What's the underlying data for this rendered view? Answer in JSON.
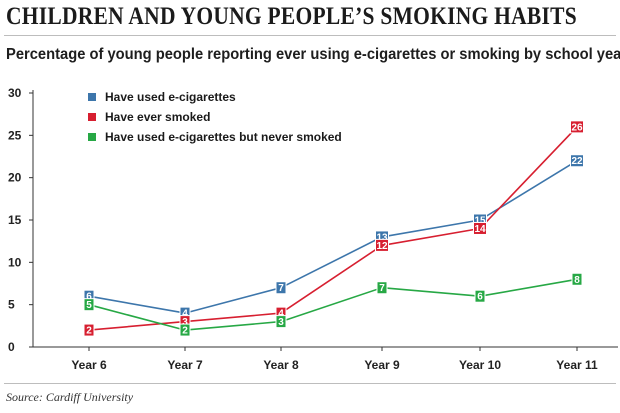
{
  "header": {
    "title": "CHILDREN AND YOUNG PEOPLE’S SMOKING HABITS",
    "subtitle": "Percentage of young people reporting ever using e-cigarettes or smoking by school year"
  },
  "footer": {
    "source": "Source: Cardiff University"
  },
  "chart_data": {
    "type": "line",
    "title": "Percentage of young people reporting ever using e-cigarettes or smoking by school year",
    "xlabel": "",
    "ylabel": "",
    "categories": [
      "Year 6",
      "Year 7",
      "Year 8",
      "Year 9",
      "Year 10",
      "Year 11"
    ],
    "ylim": [
      0,
      30
    ],
    "yticks": [
      0,
      5,
      10,
      15,
      20,
      25,
      30
    ],
    "grid": false,
    "legend_position": "top-left",
    "series": [
      {
        "name": "Have used e-cigarettes",
        "color": "#3d76ab",
        "values": [
          6,
          4,
          7,
          13,
          15,
          22
        ]
      },
      {
        "name": "Have ever smoked",
        "color": "#d71f30",
        "values": [
          2,
          3,
          4,
          12,
          14,
          26
        ]
      },
      {
        "name": "Have used e-cigarettes but never smoked",
        "color": "#27a845",
        "values": [
          5,
          2,
          3,
          7,
          6,
          8
        ]
      }
    ]
  }
}
